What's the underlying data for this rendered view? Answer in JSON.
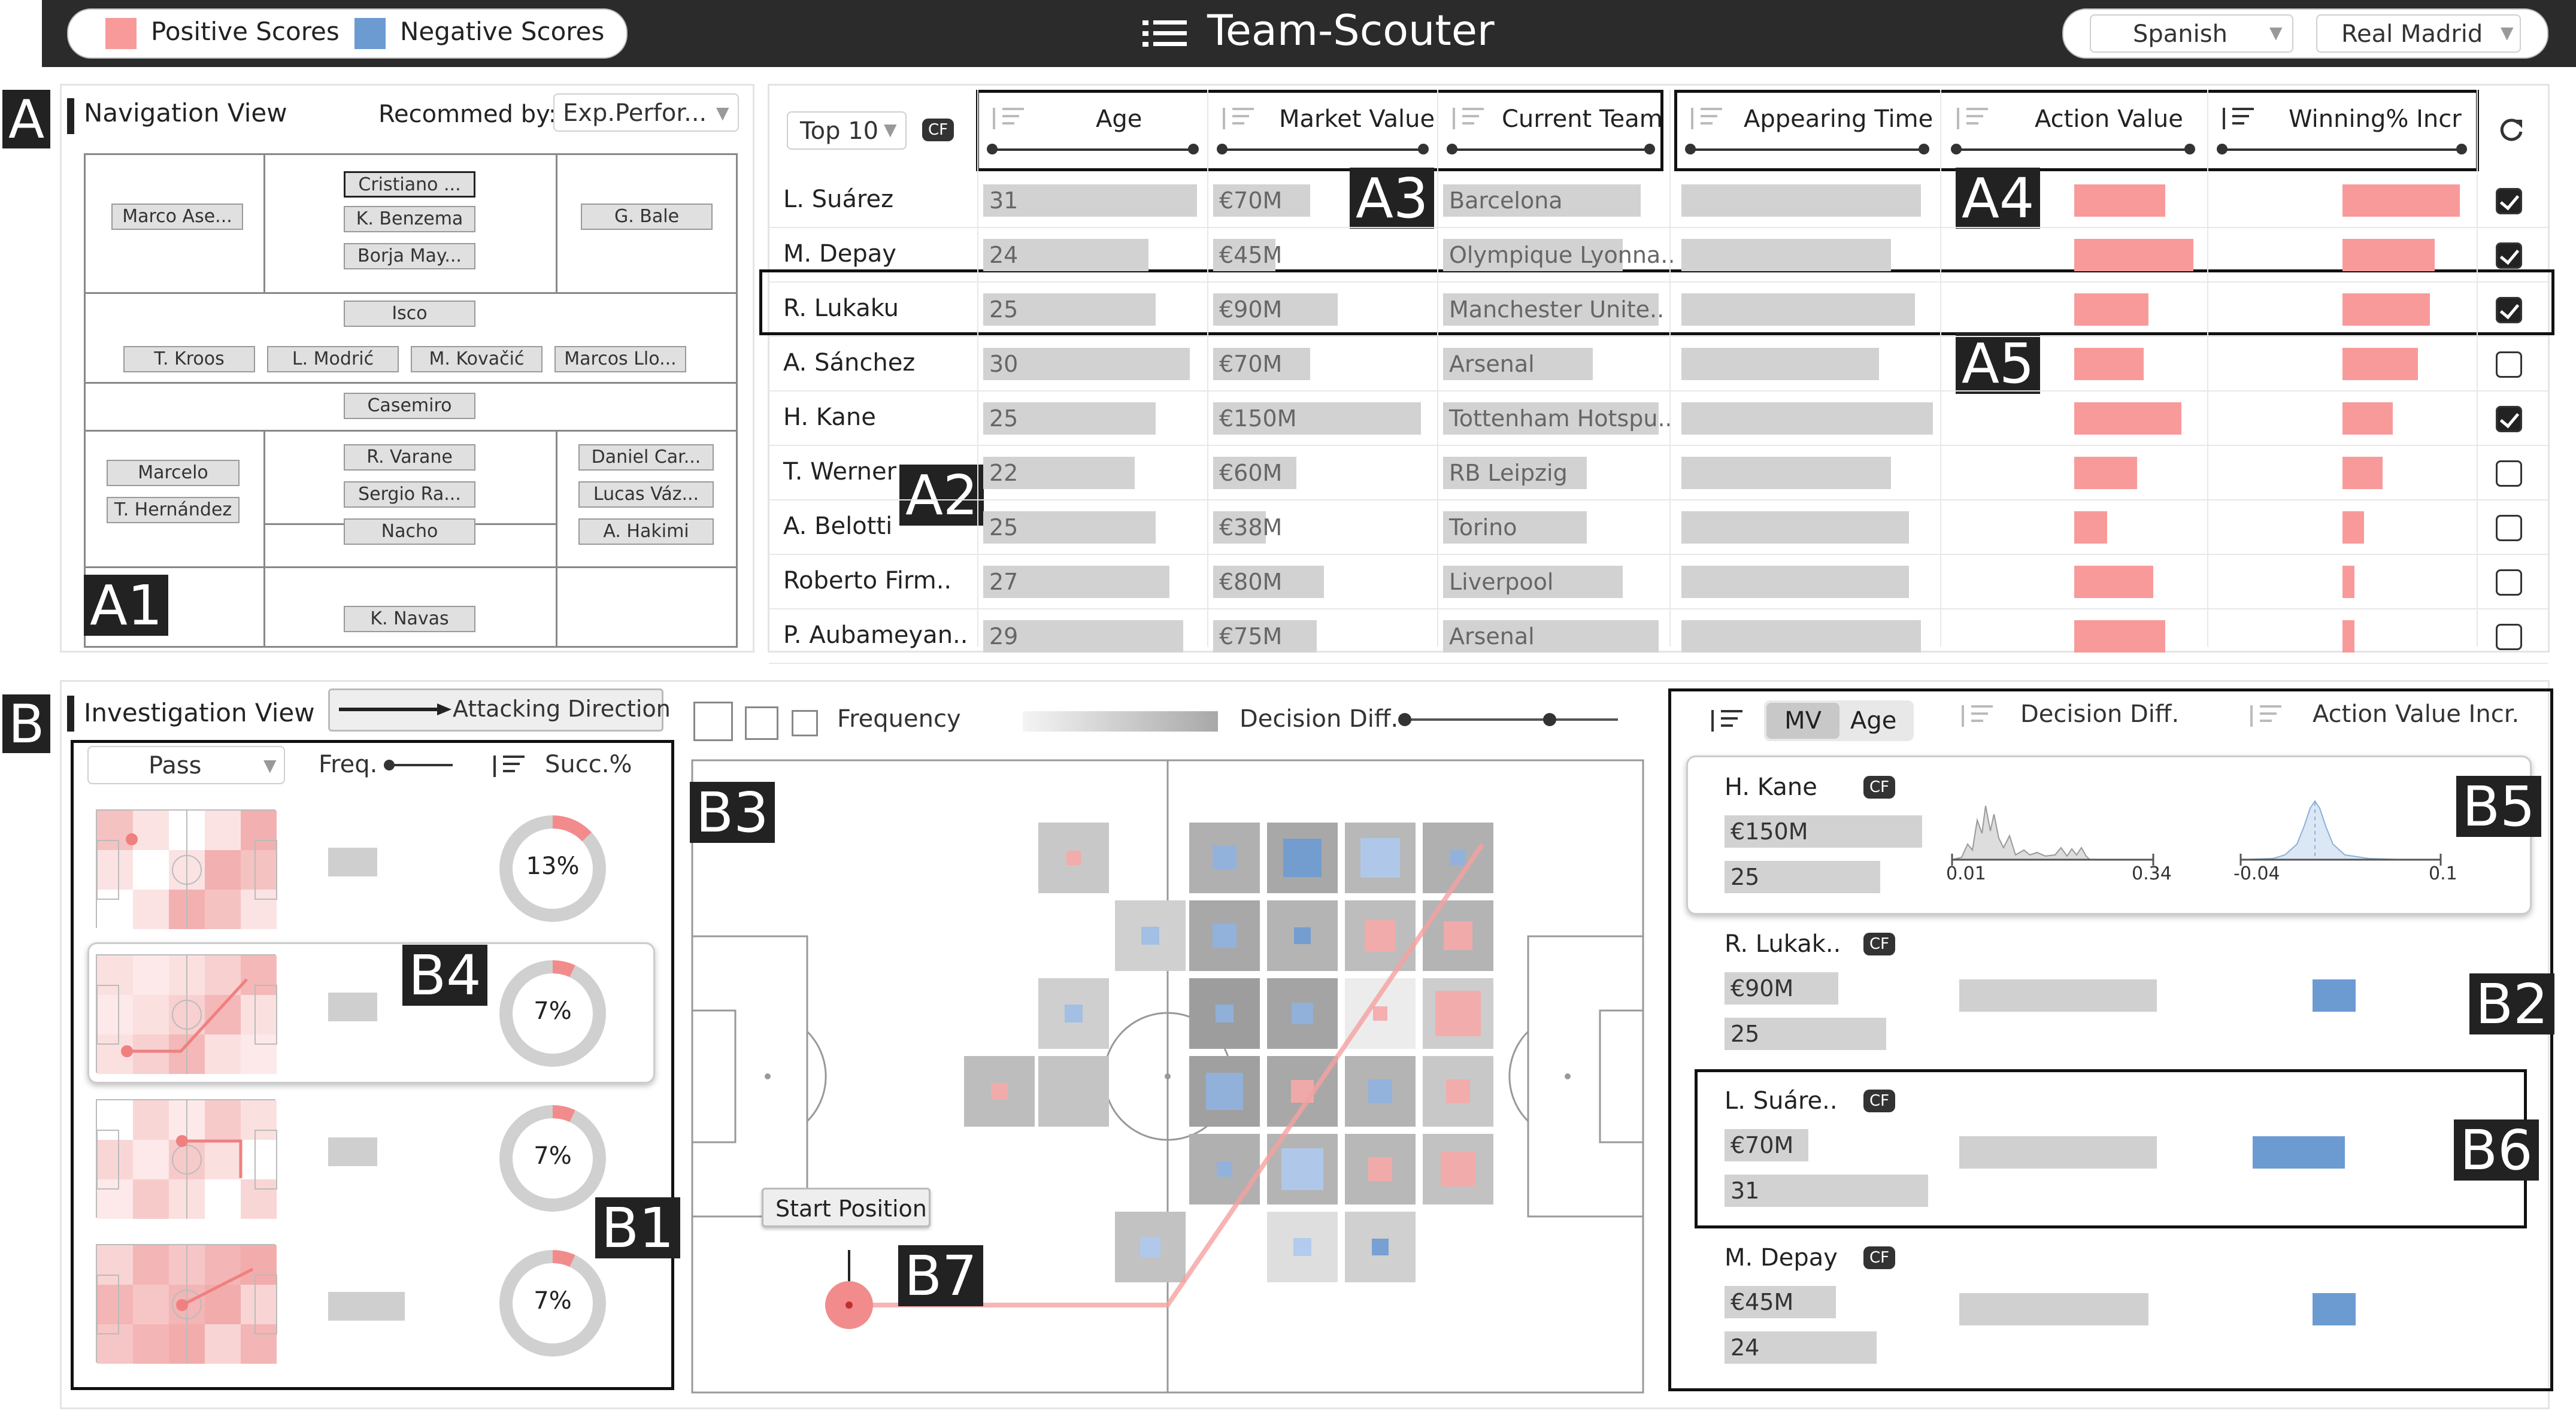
{
  "app": {
    "title": "Team-Scouter",
    "league": "Spanish",
    "team": "Real Madrid"
  },
  "legend": {
    "positive": "Positive Scores",
    "negative": "Negative Scores",
    "positive_color": "#f89a9a",
    "negative_color": "#6c9bd2"
  },
  "badges": {
    "A": "A",
    "A1": "A1",
    "A2": "A2",
    "A3": "A3",
    "A4": "A4",
    "A5": "A5",
    "B": "B",
    "B1": "B1",
    "B2": "B2",
    "B3": "B3",
    "B4": "B4",
    "B5": "B5",
    "B6": "B6",
    "B7": "B7"
  },
  "navigation": {
    "title": "Navigation View",
    "recommend_label": "Recommed by:",
    "recommend_value": "Exp.Perfor...",
    "players": {
      "cristiano": "Cristiano ...",
      "benzema": "K. Benzema",
      "borja": "Borja May...",
      "asensio": "Marco Ase...",
      "bale": "G. Bale",
      "isco": "Isco",
      "kroos": "T. Kroos",
      "modric": "L. Modrić",
      "kovacic": "M. Kovačić",
      "llorente": "Marcos Llo...",
      "casemiro": "Casemiro",
      "marcelo": "Marcelo",
      "hernandez": "T. Hernández",
      "varane": "R. Varane",
      "ramos": "Sergio Ra...",
      "nacho": "Nacho",
      "carvajal": "Daniel Car...",
      "vazquez": "Lucas Váz...",
      "hakimi": "A. Hakimi",
      "navas": "K. Navas"
    }
  },
  "table": {
    "top_select": "Top 10",
    "cf": "CF",
    "headers": {
      "age": "Age",
      "mv": "Market Value",
      "team": "Current Team",
      "time": "Appearing Time",
      "action": "Action Value",
      "win": "Winning% Incr"
    },
    "rows": [
      {
        "name": "L. Suárez",
        "age": "31",
        "mv": "€70M",
        "team": "Barcelona",
        "checked": true
      },
      {
        "name": "M. Depay",
        "age": "24",
        "mv": "€45M",
        "team": "Olympique Lyonna..",
        "checked": true
      },
      {
        "name": "R. Lukaku",
        "age": "25",
        "mv": "€90M",
        "team": "Manchester Unite..",
        "checked": true
      },
      {
        "name": "A. Sánchez",
        "age": "30",
        "mv": "€70M",
        "team": "Arsenal",
        "checked": false
      },
      {
        "name": "H. Kane",
        "age": "25",
        "mv": "€150M",
        "team": "Tottenham Hotspu..",
        "checked": true
      },
      {
        "name": "T. Werner",
        "age": "22",
        "mv": "€60M",
        "team": "RB Leipzig",
        "checked": false
      },
      {
        "name": "A. Belotti",
        "age": "25",
        "mv": "€38M",
        "team": "Torino",
        "checked": false
      },
      {
        "name": "Roberto Firm..",
        "age": "27",
        "mv": "€80M",
        "team": "Liverpool",
        "checked": false
      },
      {
        "name": "P. Aubameyan..",
        "age": "29",
        "mv": "€75M",
        "team": "Arsenal",
        "checked": false
      }
    ]
  },
  "investigation": {
    "title": "Investigation View",
    "direction": "Attacking Direction",
    "action_select": "Pass",
    "freq_label": "Freq.",
    "succ_label": "Succ.%",
    "items": [
      {
        "succ": "13%",
        "share": 0.13
      },
      {
        "succ": "7%",
        "share": 0.07
      },
      {
        "succ": "7%",
        "share": 0.07
      },
      {
        "succ": "7%",
        "share": 0.07
      }
    ]
  },
  "pitch": {
    "frequency_label": "Frequency",
    "decision_label": "Decision Diff.",
    "start_label": "Start Position"
  },
  "comparison": {
    "sort_mv": "MV",
    "sort_age": "Age",
    "decision_header": "Decision Diff.",
    "action_header": "Action Value Incr.",
    "cards": [
      {
        "name": "H. Kane",
        "mv": "€150M",
        "age": "25",
        "cf": "CF",
        "dd_min": "0.01",
        "dd_max": "0.34",
        "av_min": "-0.04",
        "av_max": "0.1"
      },
      {
        "name": "R. Lukak..",
        "mv": "€90M",
        "age": "25",
        "cf": "CF"
      },
      {
        "name": "L. Suáre..",
        "mv": "€70M",
        "age": "31",
        "cf": "CF"
      },
      {
        "name": "M. Depay",
        "mv": "€45M",
        "age": "24",
        "cf": "CF"
      }
    ]
  }
}
